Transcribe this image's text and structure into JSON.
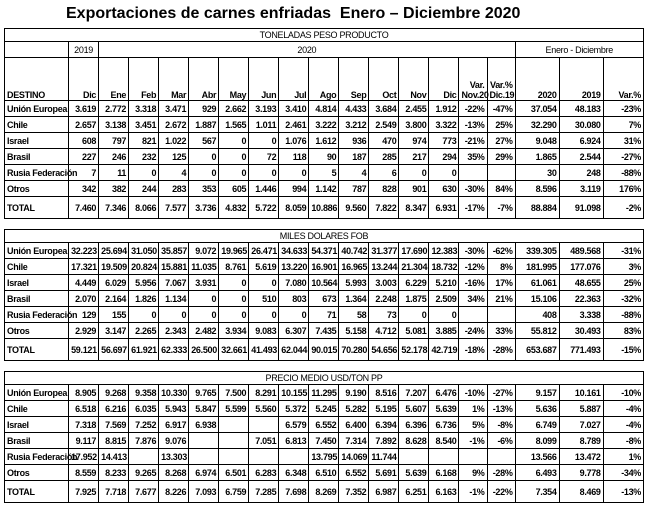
{
  "title": "Exportaciones de carnes enfriadas  Enero – Diciembre 2020",
  "year_header": [
    "2019",
    "2020",
    "Enero - Diciembre"
  ],
  "columns": [
    "DESTINO",
    "Dic",
    "Ene",
    "Feb",
    "Mar",
    "Abr",
    "May",
    "Jun",
    "Jul",
    "Ago",
    "Sep",
    "Oct",
    "Nov",
    "Dic",
    "Var. Nov.20",
    "Var.% Dic.19",
    "2020",
    "2019",
    "Var.%"
  ],
  "sections": [
    {
      "heading": "TONELADAS PESO PRODUCTO",
      "rows": [
        {
          "destino": "Unión Europea",
          "values": [
            "3.619",
            "2.772",
            "3.318",
            "3.471",
            "929",
            "2.662",
            "3.193",
            "3.410",
            "4.814",
            "4.433",
            "3.684",
            "2.455",
            "1.912",
            "-22%",
            "-47%",
            "37.054",
            "48.183",
            "-23%"
          ]
        },
        {
          "destino": "Chile",
          "values": [
            "2.657",
            "3.138",
            "3.451",
            "2.672",
            "1.887",
            "1.565",
            "1.011",
            "2.461",
            "3.222",
            "3.212",
            "2.549",
            "3.800",
            "3.322",
            "-13%",
            "25%",
            "32.290",
            "30.080",
            "7%"
          ]
        },
        {
          "destino": "Israel",
          "values": [
            "608",
            "797",
            "821",
            "1.022",
            "567",
            "0",
            "0",
            "1.076",
            "1.612",
            "936",
            "470",
            "974",
            "773",
            "-21%",
            "27%",
            "9.048",
            "6.924",
            "31%"
          ]
        },
        {
          "destino": "Brasil",
          "values": [
            "227",
            "246",
            "232",
            "125",
            "0",
            "0",
            "72",
            "118",
            "90",
            "187",
            "285",
            "217",
            "294",
            "35%",
            "29%",
            "1.865",
            "2.544",
            "-27%"
          ]
        },
        {
          "destino": "Rusia Federación",
          "values": [
            "7",
            "11",
            "0",
            "4",
            "0",
            "0",
            "0",
            "0",
            "5",
            "4",
            "6",
            "0",
            "0",
            null,
            null,
            "30",
            "248",
            "-88%"
          ]
        },
        {
          "destino": "Otros",
          "values": [
            "342",
            "382",
            "244",
            "283",
            "353",
            "605",
            "1.446",
            "994",
            "1.142",
            "787",
            "828",
            "901",
            "630",
            "-30%",
            "84%",
            "8.596",
            "3.119",
            "176%"
          ]
        },
        {
          "destino": "TOTAL",
          "values": [
            "7.460",
            "7.346",
            "8.066",
            "7.577",
            "3.736",
            "4.832",
            "5.722",
            "8.059",
            "10.886",
            "9.560",
            "7.822",
            "8.347",
            "6.931",
            "-17%",
            "-7%",
            "88.884",
            "91.098",
            "-2%"
          ]
        }
      ]
    },
    {
      "heading": "MILES DOLARES FOB",
      "rows": [
        {
          "destino": "Unión Europea",
          "values": [
            "32.223",
            "25.694",
            "31.050",
            "35.857",
            "9.072",
            "19.965",
            "26.471",
            "34.633",
            "54.371",
            "40.742",
            "31.377",
            "17.690",
            "12.383",
            "-30%",
            "-62%",
            "339.305",
            "489.568",
            "-31%"
          ]
        },
        {
          "destino": "Chile",
          "values": [
            "17.321",
            "19.509",
            "20.824",
            "15.881",
            "11.035",
            "8.761",
            "5.619",
            "13.220",
            "16.901",
            "16.965",
            "13.244",
            "21.304",
            "18.732",
            "-12%",
            "8%",
            "181.995",
            "177.076",
            "3%"
          ]
        },
        {
          "destino": "Israel",
          "values": [
            "4.449",
            "6.029",
            "5.956",
            "7.067",
            "3.931",
            "0",
            "0",
            "7.080",
            "10.564",
            "5.993",
            "3.003",
            "6.229",
            "5.210",
            "-16%",
            "17%",
            "61.061",
            "48.655",
            "25%"
          ]
        },
        {
          "destino": "Brasil",
          "values": [
            "2.070",
            "2.164",
            "1.826",
            "1.134",
            "0",
            "0",
            "510",
            "803",
            "673",
            "1.364",
            "2.248",
            "1.875",
            "2.509",
            "34%",
            "21%",
            "15.106",
            "22.363",
            "-32%"
          ]
        },
        {
          "destino": "Rusia Federación",
          "values": [
            "129",
            "155",
            "0",
            "0",
            "0",
            "0",
            "0",
            "0",
            "71",
            "58",
            "73",
            "0",
            "0",
            null,
            null,
            "408",
            "3.338",
            "-88%"
          ]
        },
        {
          "destino": "Otros",
          "values": [
            "2.929",
            "3.147",
            "2.265",
            "2.343",
            "2.482",
            "3.934",
            "9.083",
            "6.307",
            "7.435",
            "5.158",
            "4.712",
            "5.081",
            "3.885",
            "-24%",
            "33%",
            "55.812",
            "30.493",
            "83%"
          ]
        },
        {
          "destino": "TOTAL",
          "values": [
            "59.121",
            "56.697",
            "61.921",
            "62.333",
            "26.500",
            "32.661",
            "41.493",
            "62.044",
            "90.015",
            "70.280",
            "54.656",
            "52.178",
            "42.719",
            "-18%",
            "-28%",
            "653.687",
            "771.493",
            "-15%"
          ]
        }
      ]
    },
    {
      "heading": "PRECIO MEDIO USD/TON PP",
      "rows": [
        {
          "destino": "Unión Europea",
          "values": [
            "8.905",
            "9.268",
            "9.358",
            "10.330",
            "9.765",
            "7.500",
            "8.291",
            "10.155",
            "11.295",
            "9.190",
            "8.516",
            "7.207",
            "6.476",
            "-10%",
            "-27%",
            "9.157",
            "10.161",
            "-10%"
          ]
        },
        {
          "destino": "Chile",
          "values": [
            "6.518",
            "6.216",
            "6.035",
            "5.943",
            "5.847",
            "5.599",
            "5.560",
            "5.372",
            "5.245",
            "5.282",
            "5.195",
            "5.607",
            "5.639",
            "1%",
            "-13%",
            "5.636",
            "5.887",
            "-4%"
          ]
        },
        {
          "destino": "Israel",
          "values": [
            "7.318",
            "7.569",
            "7.252",
            "6.917",
            "6.938",
            null,
            null,
            "6.579",
            "6.552",
            "6.400",
            "6.394",
            "6.396",
            "6.736",
            "5%",
            "-8%",
            "6.749",
            "7.027",
            "-4%"
          ]
        },
        {
          "destino": "Brasil",
          "values": [
            "9.117",
            "8.815",
            "7.876",
            "9.076",
            null,
            null,
            "7.051",
            "6.813",
            "7.450",
            "7.314",
            "7.892",
            "8.628",
            "8.540",
            "-1%",
            "-6%",
            "8.099",
            "8.789",
            "-8%"
          ]
        },
        {
          "destino": "Rusia Federación",
          "values": [
            "17.952",
            "14.413",
            null,
            "13.303",
            null,
            null,
            null,
            null,
            "13.795",
            "14.069",
            "11.744",
            null,
            null,
            null,
            null,
            "13.566",
            "13.472",
            "1%"
          ]
        },
        {
          "destino": "Otros",
          "values": [
            "8.559",
            "8.233",
            "9.265",
            "8.268",
            "6.974",
            "6.501",
            "6.283",
            "6.348",
            "6.510",
            "6.552",
            "5.691",
            "5.639",
            "6.168",
            "9%",
            "-28%",
            "6.493",
            "9.778",
            "-34%"
          ]
        },
        {
          "destino": "TOTAL",
          "values": [
            "7.925",
            "7.718",
            "7.677",
            "8.226",
            "7.093",
            "6.759",
            "7.285",
            "7.698",
            "8.269",
            "7.352",
            "6.987",
            "6.251",
            "6.163",
            "-1%",
            "-22%",
            "7.354",
            "8.469",
            "-13%"
          ]
        }
      ]
    }
  ]
}
